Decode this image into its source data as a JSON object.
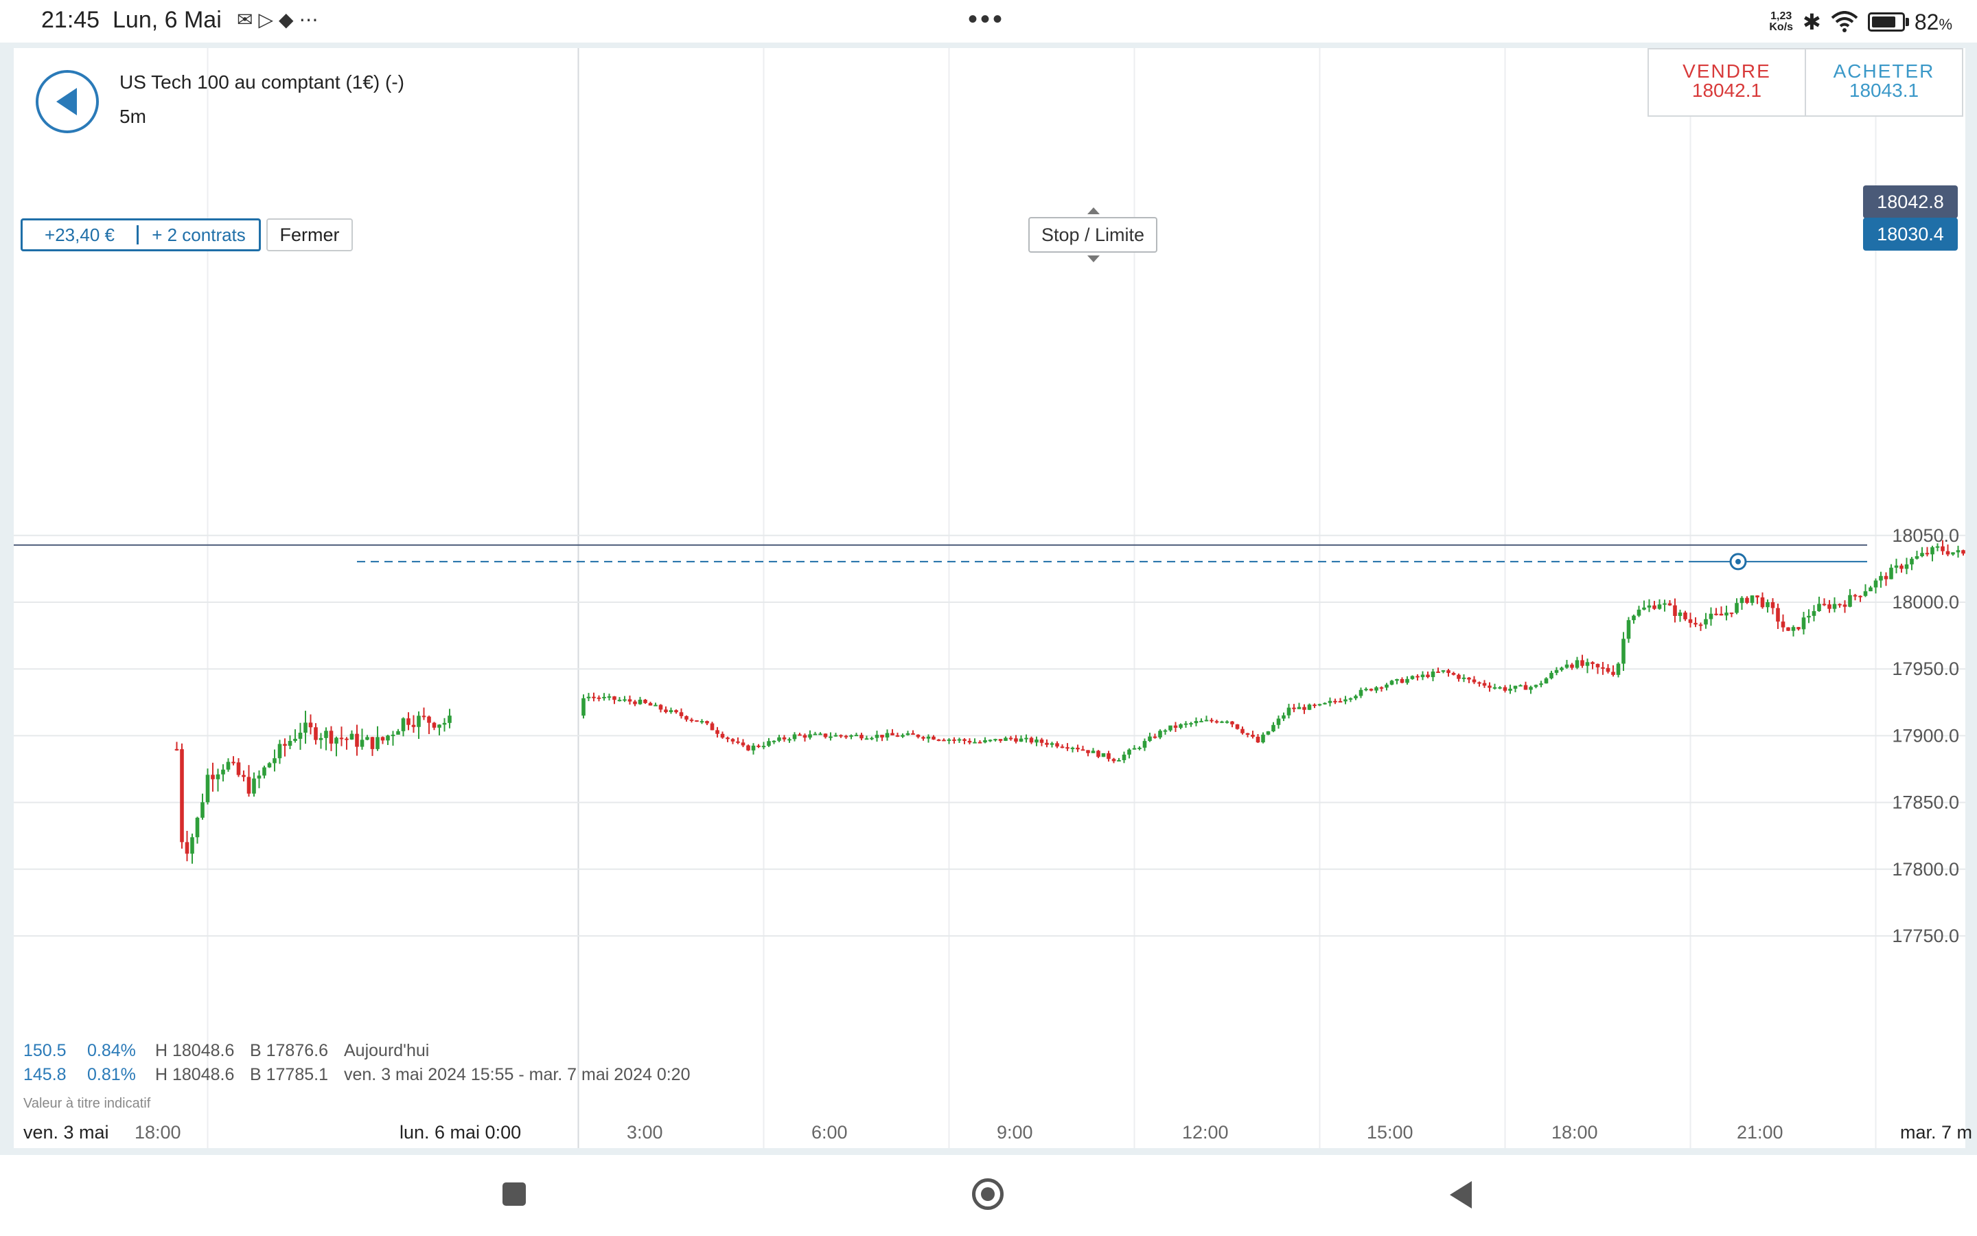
{
  "status_bar": {
    "time": "21:45",
    "date": "Lun, 6 Mai",
    "left_icons": [
      "notification-icon",
      "play-store-icon",
      "app-icon"
    ],
    "more_label": "•••",
    "network_speed_value": "1,23",
    "network_speed_unit": "Ko/s",
    "battery_percent": "82",
    "battery_unit": "%",
    "battery_level": 0.82
  },
  "header": {
    "instrument": "US Tech 100 au comptant (1€) (-)",
    "timeframe": "5m"
  },
  "trade": {
    "sell_label": "VENDRE",
    "sell_price": "18042.1",
    "buy_label": "ACHETER",
    "buy_price": "18043.1"
  },
  "position": {
    "pnl": "+23,40 €",
    "contracts": "+ 2 contrats",
    "close_label": "Fermer",
    "stop_limit_label": "Stop / Limite",
    "entry_price": 18030.4,
    "entry_price_label": "18030.4"
  },
  "last_price": 18042.8,
  "last_price_label": "18042.8",
  "stats": {
    "row1": {
      "change": "150.5",
      "pct": "0.84%",
      "high": "H 18048.6",
      "low": "B 17876.6",
      "period": "Aujourd'hui"
    },
    "row2": {
      "change": "145.8",
      "pct": "0.81%",
      "high": "H 18048.6",
      "low": "B 17785.1",
      "period": "ven. 3 mai 2024 15:55 - mar. 7 mai 2024 0:20"
    }
  },
  "disclaimer": "Valeur à titre indicatif",
  "x_axis": {
    "labels": [
      {
        "text": "ven. 3 mai",
        "strong": true
      },
      {
        "text": "18:00",
        "strong": false
      },
      {
        "text": "lun. 6 mai 0:00",
        "strong": true
      },
      {
        "text": "3:00",
        "strong": false
      },
      {
        "text": "6:00",
        "strong": false
      },
      {
        "text": "9:00",
        "strong": false
      },
      {
        "text": "12:00",
        "strong": false
      },
      {
        "text": "15:00",
        "strong": false
      },
      {
        "text": "18:00",
        "strong": false
      },
      {
        "text": "21:00",
        "strong": false
      },
      {
        "text": "mar. 7 m",
        "strong": true
      }
    ]
  },
  "chart_data": {
    "type": "candlestick",
    "y_ticks": [
      18050.0,
      18000.0,
      17950.0,
      17900.0,
      17850.0,
      17800.0,
      17750.0
    ],
    "y_tick_labels": [
      "18050.0",
      "18000.0",
      "17950.0",
      "17900.0",
      "17850.0",
      "17800.0",
      "17750.0"
    ],
    "ylim": [
      17720,
      18080
    ],
    "grid": true,
    "colors": {
      "up": "#2e9e3a",
      "down": "#d62b2b",
      "position_line": "#1f6fa8",
      "last_price_line": "#4a5a78"
    },
    "key_points": [
      {
        "h": 17.5,
        "p": 17890
      },
      {
        "h": 17.6,
        "p": 17810
      },
      {
        "h": 17.8,
        "p": 17830
      },
      {
        "h": 18.0,
        "p": 17870
      },
      {
        "h": 18.3,
        "p": 17880
      },
      {
        "h": 18.7,
        "p": 17860
      },
      {
        "h": 19.0,
        "p": 17880
      },
      {
        "h": 19.5,
        "p": 17905
      },
      {
        "h": 20.0,
        "p": 17900
      },
      {
        "h": 20.5,
        "p": 17895
      },
      {
        "h": 20.8,
        "p": 17895
      },
      {
        "h": 21.2,
        "p": 17913
      },
      {
        "h": 21.9,
        "p": 17910
      },
      {
        "h": 24.0,
        "p": 17930
      },
      {
        "h": 25.0,
        "p": 17925
      },
      {
        "h": 26.0,
        "p": 17910
      },
      {
        "h": 26.7,
        "p": 17890
      },
      {
        "h": 27.5,
        "p": 17900
      },
      {
        "h": 28.5,
        "p": 17900
      },
      {
        "h": 29.5,
        "p": 17900
      },
      {
        "h": 30.5,
        "p": 17895
      },
      {
        "h": 31.0,
        "p": 17898
      },
      {
        "h": 32.0,
        "p": 17892
      },
      {
        "h": 32.7,
        "p": 17882
      },
      {
        "h": 33.0,
        "p": 17890
      },
      {
        "h": 33.5,
        "p": 17905
      },
      {
        "h": 34.0,
        "p": 17910
      },
      {
        "h": 34.5,
        "p": 17912
      },
      {
        "h": 35.0,
        "p": 17895
      },
      {
        "h": 35.5,
        "p": 17920
      },
      {
        "h": 36.0,
        "p": 17922
      },
      {
        "h": 37.0,
        "p": 17938
      },
      {
        "h": 38.0,
        "p": 17948
      },
      {
        "h": 38.5,
        "p": 17940
      },
      {
        "h": 39.0,
        "p": 17935
      },
      {
        "h": 39.5,
        "p": 17937
      },
      {
        "h": 40.0,
        "p": 17955
      },
      {
        "h": 40.5,
        "p": 17950
      },
      {
        "h": 40.8,
        "p": 17948
      },
      {
        "h": 41.0,
        "p": 17990
      },
      {
        "h": 41.5,
        "p": 18000
      },
      {
        "h": 42.0,
        "p": 17985
      },
      {
        "h": 42.5,
        "p": 17990
      },
      {
        "h": 43.0,
        "p": 18005
      },
      {
        "h": 43.3,
        "p": 17995
      },
      {
        "h": 43.6,
        "p": 17975
      },
      {
        "h": 44.0,
        "p": 17995
      },
      {
        "h": 44.5,
        "p": 18000
      },
      {
        "h": 45.0,
        "p": 18015
      },
      {
        "h": 45.5,
        "p": 18030
      },
      {
        "h": 46.0,
        "p": 18040
      },
      {
        "h": 46.5,
        "p": 18035
      },
      {
        "h": 47.0,
        "p": 18042
      },
      {
        "h": 47.4,
        "p": 18047
      },
      {
        "h": 47.6,
        "p": 18043
      }
    ]
  }
}
